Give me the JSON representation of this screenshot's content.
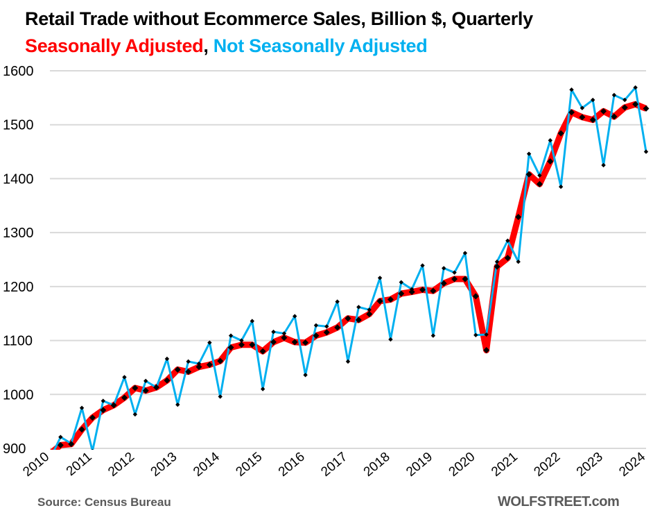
{
  "chart_data": {
    "type": "line",
    "title": "Retail Trade without Ecommerce Sales, Billion $, Quarterly",
    "subtitle_parts": [
      {
        "text": "Seasonally Adjusted",
        "series": "sa"
      },
      {
        "text": ", ",
        "series": "none"
      },
      {
        "text": "Not Seasonally Adjusted",
        "series": "nsa"
      }
    ],
    "xlabel": "",
    "ylabel": "",
    "ylim": [
      900,
      1600
    ],
    "yticks": [
      900,
      1000,
      1100,
      1200,
      1300,
      1400,
      1500,
      1600
    ],
    "xticks": [
      "2010",
      "2011",
      "2012",
      "2013",
      "2014",
      "2015",
      "2016",
      "2017",
      "2018",
      "2019",
      "2020",
      "2021",
      "2022",
      "2023",
      "2024"
    ],
    "x_start": "2010 Q1",
    "x_end": "2024 Q1",
    "frequency": "quarterly",
    "grid": true,
    "legend": "none (encoded in subtitle colors)",
    "series": [
      {
        "name": "Seasonally Adjusted",
        "key": "sa",
        "color": "#ff0000",
        "marker_color": "#000000",
        "values": [
          890,
          906,
          908,
          935,
          957,
          971,
          980,
          994,
          1012,
          1007,
          1013,
          1026,
          1046,
          1042,
          1051,
          1055,
          1062,
          1087,
          1092,
          1092,
          1080,
          1097,
          1105,
          1097,
          1096,
          1109,
          1115,
          1124,
          1141,
          1138,
          1149,
          1173,
          1176,
          1187,
          1190,
          1194,
          1192,
          1206,
          1214,
          1214,
          1182,
          1082,
          1237,
          1253,
          1329,
          1408,
          1390,
          1432,
          1484,
          1523,
          1514,
          1509,
          1525,
          1515,
          1532,
          1538,
          1530
        ]
      },
      {
        "name": "Not Seasonally Adjusted",
        "key": "nsa",
        "color": "#00b0f0",
        "marker_color": "#000000",
        "values": [
          880,
          921,
          909,
          975,
          895,
          988,
          980,
          1032,
          963,
          1025,
          1013,
          1066,
          981,
          1061,
          1057,
          1096,
          996,
          1109,
          1100,
          1136,
          1010,
          1116,
          1113,
          1145,
          1036,
          1128,
          1126,
          1172,
          1061,
          1162,
          1157,
          1216,
          1102,
          1208,
          1195,
          1239,
          1109,
          1234,
          1226,
          1262,
          1110,
          1111,
          1246,
          1285,
          1246,
          1446,
          1406,
          1471,
          1385,
          1565,
          1531,
          1546,
          1425,
          1555,
          1546,
          1569,
          1450
        ]
      }
    ]
  },
  "footer": {
    "source": "Source: Census Bureau",
    "brand": "WOLFSTREET.com"
  }
}
